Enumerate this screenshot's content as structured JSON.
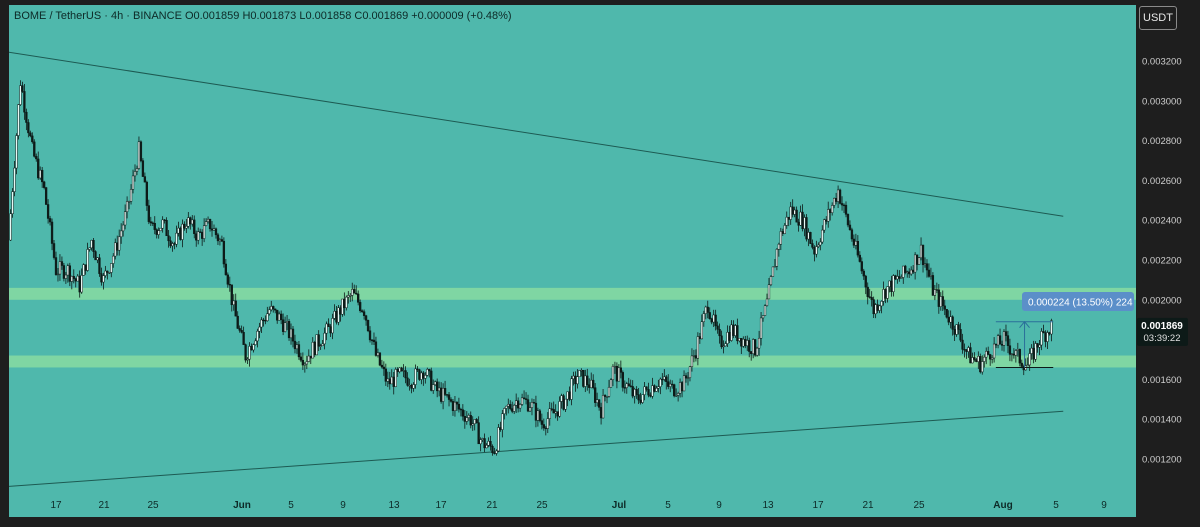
{
  "legend": "BOME / TetherUS · 4h · BINANCE  O0.001859  H0.001873  L0.001858  C0.001869  +0.000009 (+0.48%)",
  "currency": "USDT",
  "price_label": {
    "price": "0.001869",
    "countdown": "03:39:22"
  },
  "measure_label": "0.000224 (13.50%) 224",
  "colors": {
    "plot_bg": "#4fb8ac",
    "zone": "#8fe0a0",
    "candle": "#0d1a18",
    "tag_bg": "#0d1a18",
    "measure_bg": "#5b8fc9"
  },
  "chart_data": {
    "type": "candlestick",
    "y_ticks": [
      "0.003200",
      "0.003000",
      "0.002800",
      "0.002600",
      "0.002400",
      "0.002200",
      "0.002000",
      "0.001800",
      "0.001600",
      "0.001400",
      "0.001200"
    ],
    "x_ticks": [
      "17",
      "21",
      "25",
      "Jun",
      "5",
      "9",
      "13",
      "17",
      "21",
      "25",
      "Jul",
      "5",
      "9",
      "13",
      "17",
      "21",
      "25",
      "Aug",
      "5",
      "9"
    ],
    "ylim": [
      0.00102,
      0.00338
    ],
    "zones": [
      [
        0.002,
        0.00206
      ],
      [
        0.00166,
        0.00172
      ]
    ],
    "trendlines": [
      {
        "from": [
          "May 13",
          0.00325
        ],
        "to": [
          "Aug 10",
          0.00242
        ]
      },
      {
        "from": [
          "May 13",
          0.00106
        ],
        "to": [
          "Aug 10",
          0.00144
        ]
      }
    ],
    "price_path": [
      [
        "May 13",
        0.0023
      ],
      [
        "May 14",
        0.0031
      ],
      [
        "May 15",
        0.00275
      ],
      [
        "May 16",
        0.00255
      ],
      [
        "May 17",
        0.00215
      ],
      [
        "May 18",
        0.00215
      ],
      [
        "May 19",
        0.00207
      ],
      [
        "May 20",
        0.0023
      ],
      [
        "May 21",
        0.0021
      ],
      [
        "May 22",
        0.00225
      ],
      [
        "May 23",
        0.00245
      ],
      [
        "May 24",
        0.00275
      ],
      [
        "May 25",
        0.00235
      ],
      [
        "May 26",
        0.00238
      ],
      [
        "May 27",
        0.00228
      ],
      [
        "May 28",
        0.0024
      ],
      [
        "May 29",
        0.00232
      ],
      [
        "May 30",
        0.00238
      ],
      [
        "May 31",
        0.00228
      ],
      [
        "Jun 1",
        0.00195
      ],
      [
        "Jun 2",
        0.00172
      ],
      [
        "Jun 3",
        0.00185
      ],
      [
        "Jun 4",
        0.00195
      ],
      [
        "Jun 5",
        0.0019
      ],
      [
        "Jun 6",
        0.0018
      ],
      [
        "Jun 7",
        0.0017
      ],
      [
        "Jun 8",
        0.00178
      ],
      [
        "Jun 9",
        0.00185
      ],
      [
        "Jun 10",
        0.00195
      ],
      [
        "Jun 11",
        0.00203
      ],
      [
        "Jun 12",
        0.00195
      ],
      [
        "Jun 13",
        0.00172
      ],
      [
        "Jun 14",
        0.00158
      ],
      [
        "Jun 15",
        0.00162
      ],
      [
        "Jun 16",
        0.0016
      ],
      [
        "Jun 17",
        0.00165
      ],
      [
        "Jun 18",
        0.00155
      ],
      [
        "Jun 19",
        0.0015
      ],
      [
        "Jun 20",
        0.00145
      ],
      [
        "Jun 21",
        0.0014
      ],
      [
        "Jun 22",
        0.00128
      ],
      [
        "Jun 23",
        0.00125
      ],
      [
        "Jun 24",
        0.00145
      ],
      [
        "Jun 25",
        0.0015
      ],
      [
        "Jun 26",
        0.00148
      ],
      [
        "Jun 27",
        0.00138
      ],
      [
        "Jun 28",
        0.00143
      ],
      [
        "Jun 29",
        0.0015
      ],
      [
        "Jun 30",
        0.00162
      ],
      [
        "Jul 1",
        0.00158
      ],
      [
        "Jul 2",
        0.00145
      ],
      [
        "Jul 3",
        0.00165
      ],
      [
        "Jul 4",
        0.00158
      ],
      [
        "Jul 5",
        0.0015
      ],
      [
        "Jul 6",
        0.00155
      ],
      [
        "Jul 7",
        0.0016
      ],
      [
        "Jul 8",
        0.00155
      ],
      [
        "Jul 9",
        0.00158
      ],
      [
        "Jul 10",
        0.00175
      ],
      [
        "Jul 11",
        0.00198
      ],
      [
        "Jul 12",
        0.00178
      ],
      [
        "Jul 13",
        0.00185
      ],
      [
        "Jul 14",
        0.0018
      ],
      [
        "Jul 15",
        0.00175
      ],
      [
        "Jul 16",
        0.00198
      ],
      [
        "Jul 17",
        0.0023
      ],
      [
        "Jul 18",
        0.00245
      ],
      [
        "Jul 19",
        0.0024
      ],
      [
        "Jul 20",
        0.00225
      ],
      [
        "Jul 21",
        0.0024
      ],
      [
        "Jul 22",
        0.00255
      ],
      [
        "Jul 23",
        0.00235
      ],
      [
        "Jul 24",
        0.00215
      ],
      [
        "Jul 25",
        0.00195
      ],
      [
        "Jul 26",
        0.00205
      ],
      [
        "Jul 27",
        0.0021
      ],
      [
        "Jul 28",
        0.00215
      ],
      [
        "Jul 29",
        0.00225
      ],
      [
        "Jul 30",
        0.00205
      ],
      [
        "Jul 31",
        0.00195
      ],
      [
        "Aug 1",
        0.00185
      ],
      [
        "Aug 2",
        0.00172
      ],
      [
        "Aug 3",
        0.00168
      ],
      [
        "Aug 4",
        0.00175
      ],
      [
        "Aug 5",
        0.0018
      ],
      [
        "Aug 6",
        0.00172
      ],
      [
        "Aug 7",
        0.00167
      ],
      [
        "Aug 8",
        0.0018
      ],
      [
        "Aug 9",
        0.00187
      ]
    ],
    "measure": {
      "from": [
        "Aug 6",
        0.00166
      ],
      "to": [
        "Aug 10",
        0.00189
      ],
      "change": "0.000224 (13.50%) 224"
    },
    "last_price": 0.001869
  }
}
